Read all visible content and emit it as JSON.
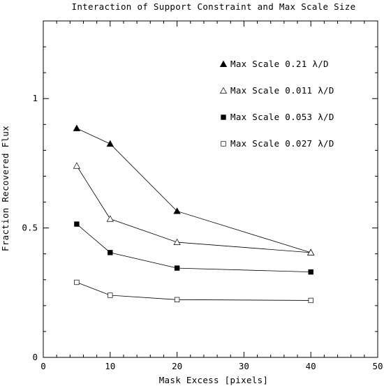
{
  "chart_data": {
    "type": "line",
    "title": "Interaction of Support Constraint and Max Scale Size",
    "xlabel": "Mask Excess [pixels]",
    "ylabel": "Fraction Recovered Flux",
    "xlim": [
      0,
      50
    ],
    "ylim": [
      0,
      1.3
    ],
    "x_ticks": [
      0,
      10,
      20,
      30,
      40,
      50
    ],
    "x_tick_labels": [
      "0",
      "10",
      "20",
      "30",
      "40",
      "50"
    ],
    "y_ticks": [
      0,
      0.5,
      1
    ],
    "y_tick_labels": [
      "0",
      "0.5",
      "1"
    ],
    "grid": false,
    "legend_position": "top-right",
    "series": [
      {
        "name": "Max Scale 0.21 λ/D",
        "marker": "filled-triangle",
        "x": [
          5,
          10,
          20,
          40
        ],
        "y": [
          0.885,
          0.825,
          0.565,
          0.405
        ]
      },
      {
        "name": "Max Scale 0.011 λ/D",
        "marker": "open-triangle",
        "x": [
          5,
          10,
          20,
          40
        ],
        "y": [
          0.74,
          0.535,
          0.445,
          0.405
        ]
      },
      {
        "name": "Max Scale 0.053 λ/D",
        "marker": "filled-square",
        "x": [
          5,
          10,
          20,
          40
        ],
        "y": [
          0.515,
          0.405,
          0.345,
          0.33
        ]
      },
      {
        "name": "Max Scale 0.027 λ/D",
        "marker": "open-square",
        "x": [
          5,
          10,
          20,
          40
        ],
        "y": [
          0.29,
          0.24,
          0.223,
          0.22
        ]
      }
    ]
  }
}
